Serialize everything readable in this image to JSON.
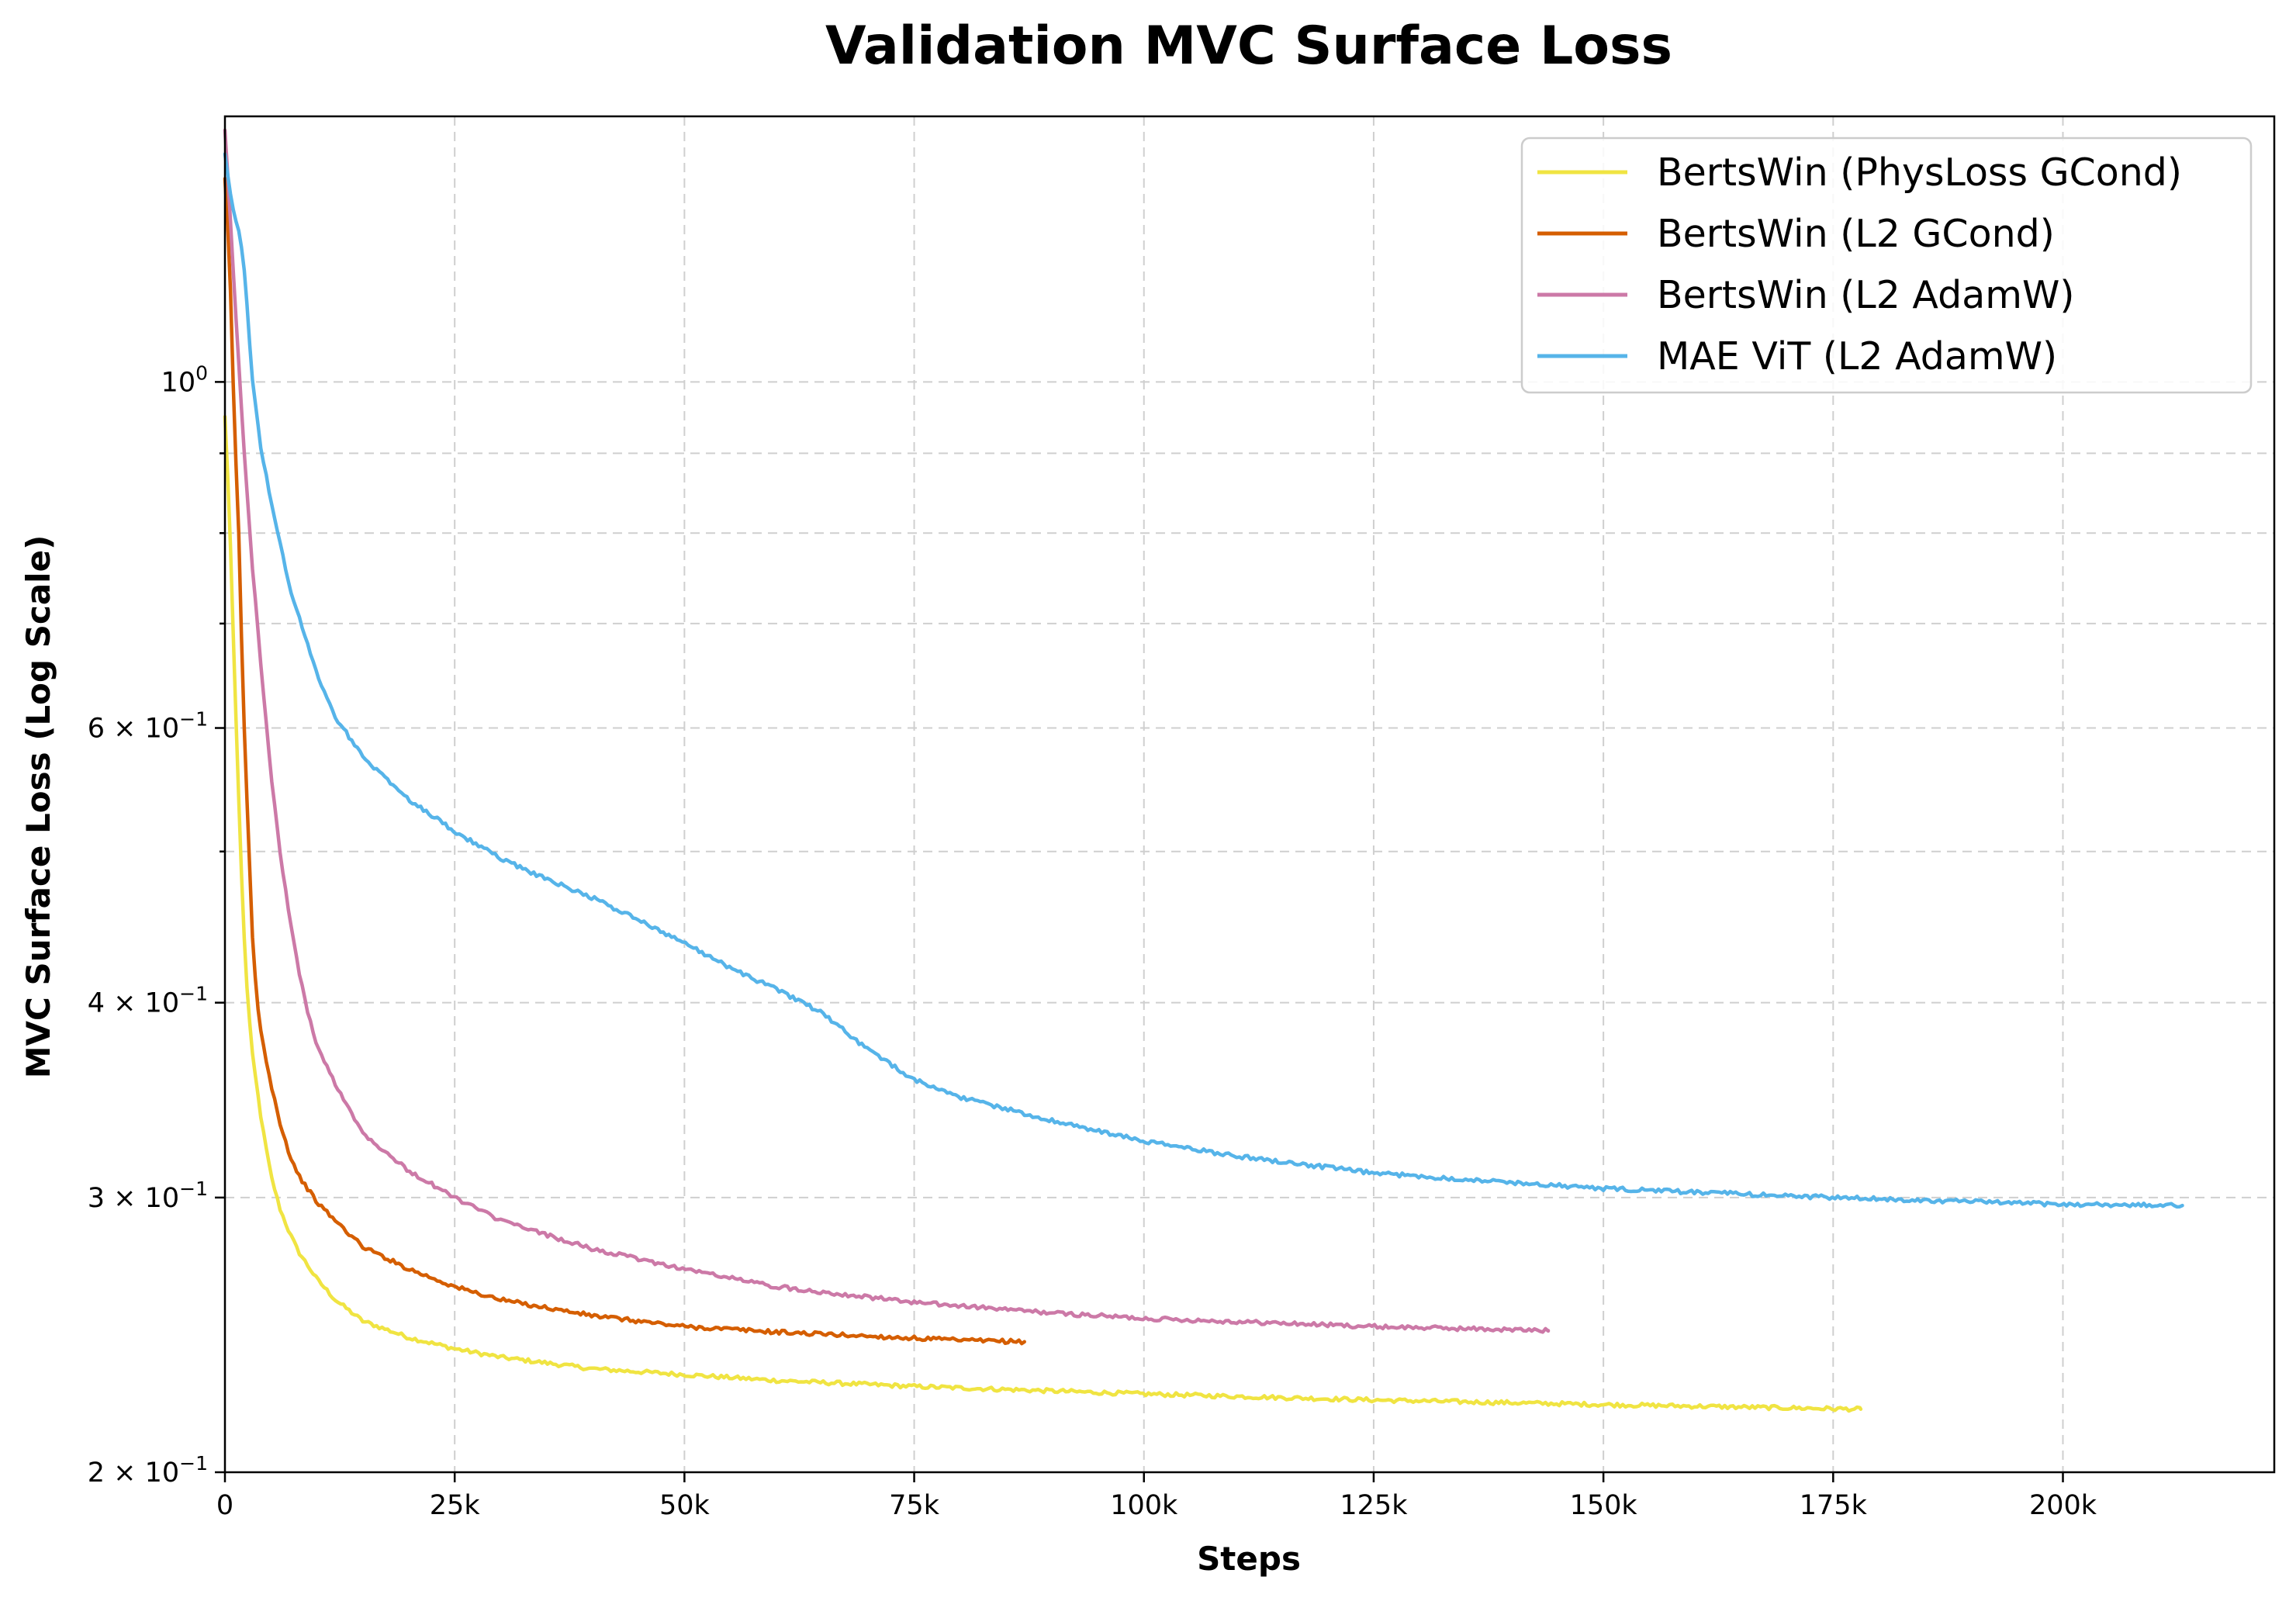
{
  "chart_data": {
    "type": "line",
    "title": "Validation MVC Surface Loss",
    "xlabel": "Steps",
    "ylabel": "MVC Surface Loss (Log Scale)",
    "xlim": [
      0,
      223000
    ],
    "ylim": [
      0.2,
      1.48
    ],
    "yscale": "log",
    "grid": true,
    "legend_position": "top-right",
    "x_ticks": [
      {
        "value": 0,
        "label": "0"
      },
      {
        "value": 25000,
        "label": "25k"
      },
      {
        "value": 50000,
        "label": "50k"
      },
      {
        "value": 75000,
        "label": "75k"
      },
      {
        "value": 100000,
        "label": "100k"
      },
      {
        "value": 125000,
        "label": "125k"
      },
      {
        "value": 150000,
        "label": "150k"
      },
      {
        "value": 175000,
        "label": "175k"
      },
      {
        "value": 200000,
        "label": "200k"
      }
    ],
    "y_major_ticks": [
      {
        "value": 1.0,
        "mant": "10",
        "exp": "0"
      },
      {
        "value": 0.6,
        "mant": "6 × 10",
        "exp": "−1"
      },
      {
        "value": 0.4,
        "mant": "4 × 10",
        "exp": "−1"
      },
      {
        "value": 0.3,
        "mant": "3 × 10",
        "exp": "−1"
      },
      {
        "value": 0.2,
        "mant": "2 × 10",
        "exp": "−1"
      }
    ],
    "y_minor_ticks": [
      0.9,
      0.8,
      0.7,
      0.5
    ],
    "series": [
      {
        "name": "BertsWin (PhysLoss GCond)",
        "color": "#f0e442",
        "x": [
          0,
          500,
          1000,
          1500,
          2000,
          2500,
          3000,
          4000,
          5000,
          6000,
          7000,
          8000,
          10000,
          12000,
          15000,
          20000,
          25000,
          30000,
          40000,
          50000,
          60000,
          75000,
          90000,
          100000,
          125000,
          150000,
          178000
        ],
        "values": [
          0.95,
          0.82,
          0.66,
          0.54,
          0.45,
          0.4,
          0.37,
          0.335,
          0.31,
          0.295,
          0.285,
          0.277,
          0.266,
          0.258,
          0.25,
          0.244,
          0.24,
          0.237,
          0.233,
          0.231,
          0.229,
          0.227,
          0.2255,
          0.2245,
          0.2225,
          0.221,
          0.2195
        ]
      },
      {
        "name": "BertsWin (L2 GCond)",
        "color": "#d55e00",
        "x": [
          0,
          500,
          1000,
          1500,
          2000,
          2500,
          3000,
          3500,
          4000,
          5000,
          6000,
          7000,
          8000,
          10000,
          12000,
          15000,
          20000,
          25000,
          30000,
          40000,
          50000,
          60000,
          70000,
          80000,
          87000
        ],
        "values": [
          1.35,
          1.2,
          0.95,
          0.8,
          0.62,
          0.52,
          0.44,
          0.4,
          0.38,
          0.355,
          0.335,
          0.32,
          0.31,
          0.298,
          0.29,
          0.279,
          0.27,
          0.263,
          0.258,
          0.252,
          0.248,
          0.246,
          0.2445,
          0.243,
          0.2425
        ]
      },
      {
        "name": "BertsWin (L2 AdamW)",
        "color": "#cc79a7",
        "x": [
          0,
          500,
          1000,
          2000,
          3000,
          4000,
          5000,
          6000,
          7000,
          8000,
          9000,
          10000,
          12000,
          15000,
          20000,
          25000,
          30000,
          40000,
          50000,
          60000,
          75000,
          90000,
          100000,
          125000,
          144000
        ],
        "values": [
          1.45,
          1.3,
          1.15,
          0.92,
          0.76,
          0.65,
          0.56,
          0.5,
          0.455,
          0.42,
          0.395,
          0.375,
          0.355,
          0.33,
          0.312,
          0.3,
          0.29,
          0.278,
          0.27,
          0.263,
          0.257,
          0.253,
          0.251,
          0.248,
          0.2465
        ]
      },
      {
        "name": "MAE ViT (L2 AdamW)",
        "color": "#56b4e9",
        "x": [
          0,
          500,
          1000,
          1500,
          2000,
          2500,
          3000,
          4000,
          5000,
          7000,
          10000,
          12000,
          15000,
          20000,
          25000,
          30000,
          35000,
          40000,
          45000,
          50000,
          55000,
          60000,
          65000,
          70000,
          75000,
          80000,
          90000,
          100000,
          110000,
          125000,
          150000,
          175000,
          200000,
          213000
        ],
        "values": [
          1.4,
          1.33,
          1.28,
          1.25,
          1.2,
          1.1,
          1.0,
          0.9,
          0.84,
          0.74,
          0.65,
          0.61,
          0.575,
          0.54,
          0.515,
          0.495,
          0.48,
          0.467,
          0.452,
          0.437,
          0.421,
          0.408,
          0.394,
          0.373,
          0.357,
          0.348,
          0.336,
          0.326,
          0.319,
          0.311,
          0.304,
          0.3,
          0.297,
          0.2965
        ]
      }
    ]
  }
}
